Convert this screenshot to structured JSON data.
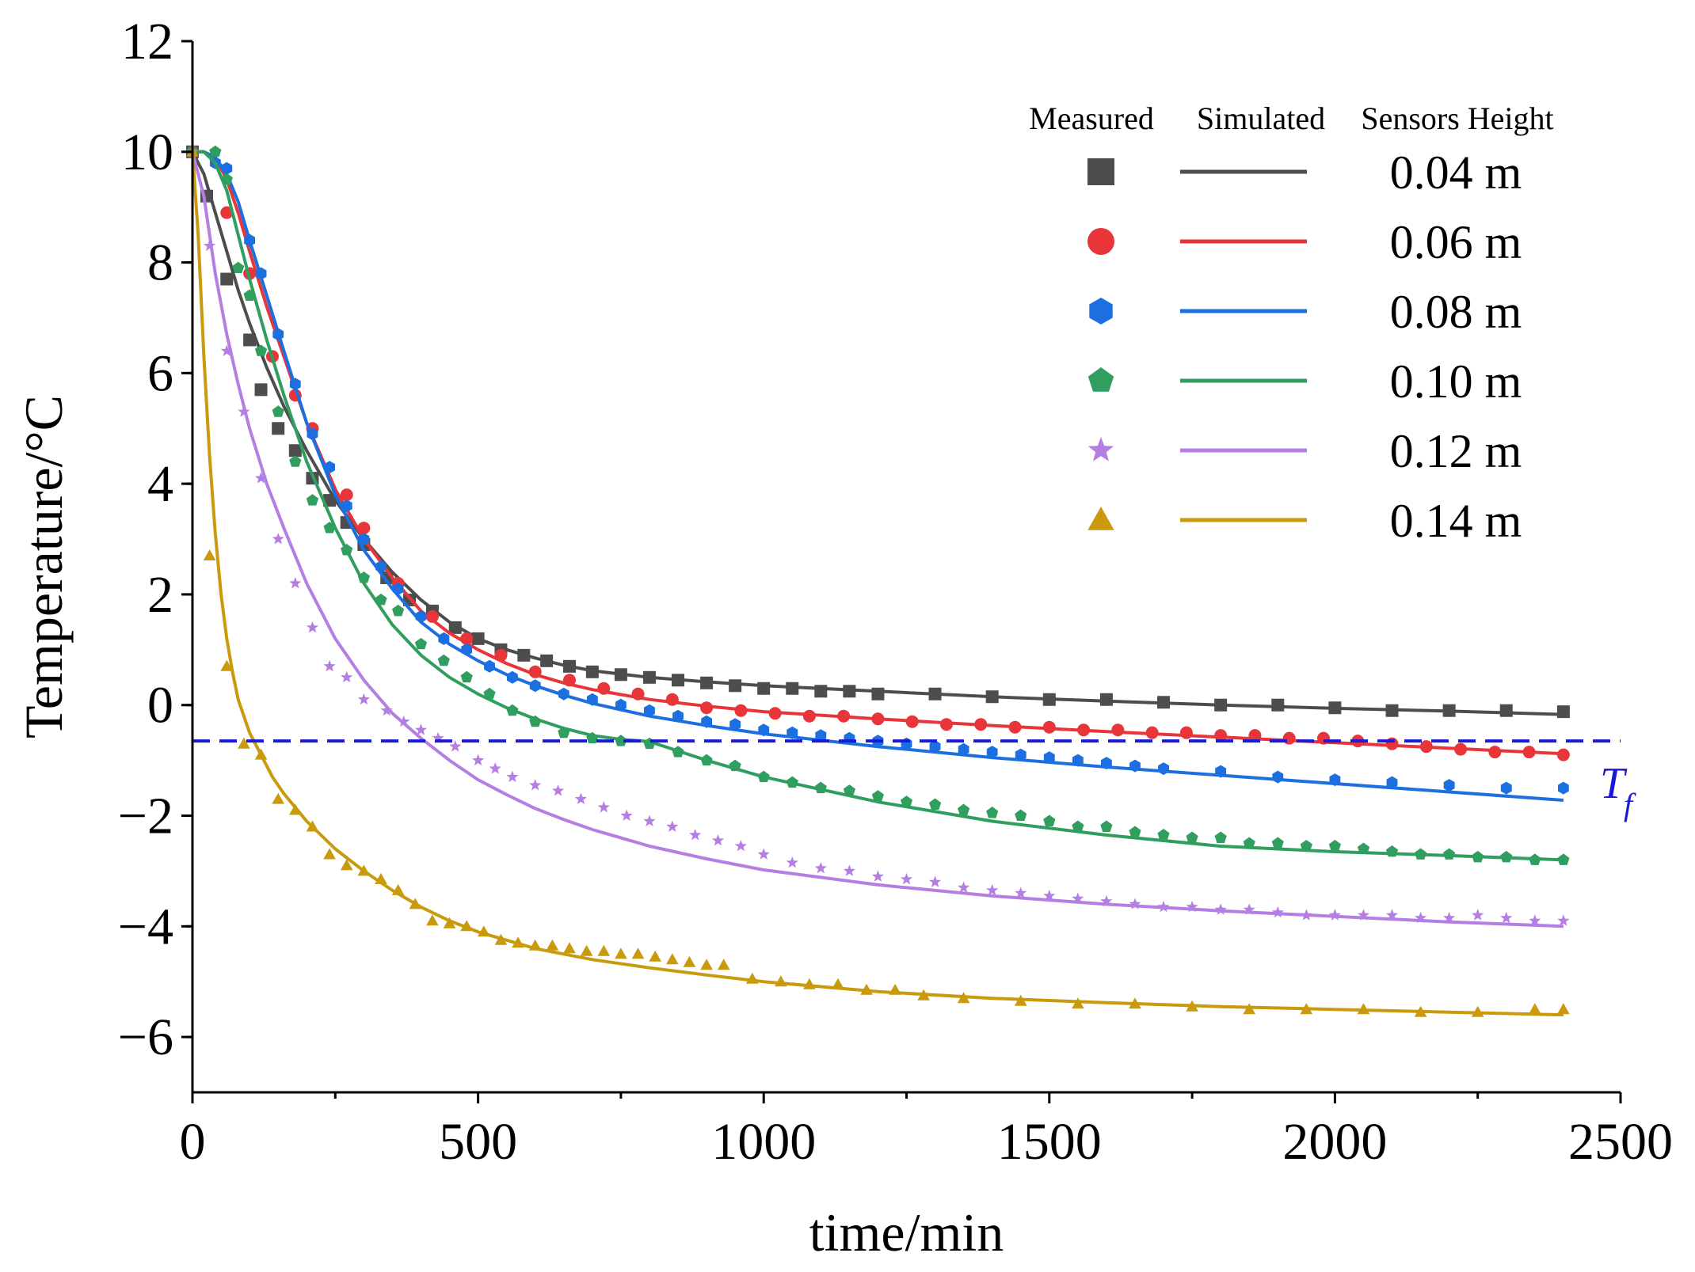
{
  "chart_data": {
    "type": "scatter",
    "title": "",
    "xlabel": "time/min",
    "ylabel": "Temperature/°C",
    "xlim": [
      0,
      2500
    ],
    "ylim": [
      -7,
      12
    ],
    "xticks": [
      "0",
      "500",
      "1000",
      "1500",
      "2000",
      "2500"
    ],
    "yticks": [
      "−6",
      "−4",
      "−2",
      "0",
      "2",
      "4",
      "6",
      "8",
      "10",
      "12"
    ],
    "xtick_values": [
      0,
      500,
      1000,
      1500,
      2000,
      2500
    ],
    "ytick_values": [
      -6,
      -4,
      -2,
      0,
      2,
      4,
      6,
      8,
      10,
      12
    ],
    "legend": {
      "position": "top-right",
      "headers": {
        "measured": "Measured",
        "simulated": "Simulated",
        "height": "Sensors Height"
      }
    },
    "reference_line": {
      "name": "T",
      "subscript": "f",
      "y": -0.65,
      "color": "#1a1ad6",
      "style": "dashed"
    },
    "series": [
      {
        "name": "0.04 m",
        "color": "#4d4d4d",
        "marker": "square",
        "simulated": {
          "x": [
            0,
            20,
            40,
            60,
            80,
            100,
            130,
            160,
            200,
            250,
            300,
            350,
            400,
            450,
            500,
            550,
            600,
            650,
            700,
            800,
            900,
            1000,
            1200,
            1400,
            1600,
            1800,
            2000,
            2200,
            2400
          ],
          "y": [
            10,
            9.6,
            8.9,
            8.2,
            7.5,
            6.9,
            6.1,
            5.4,
            4.6,
            3.7,
            3.0,
            2.4,
            1.9,
            1.5,
            1.2,
            1.0,
            0.85,
            0.72,
            0.62,
            0.5,
            0.42,
            0.35,
            0.25,
            0.15,
            0.07,
            0.0,
            -0.06,
            -0.11,
            -0.17
          ]
        },
        "measured": {
          "x": [
            0,
            25,
            60,
            100,
            120,
            150,
            180,
            210,
            240,
            270,
            300,
            340,
            380,
            420,
            460,
            500,
            540,
            580,
            620,
            660,
            700,
            750,
            800,
            850,
            900,
            950,
            1000,
            1050,
            1100,
            1150,
            1200,
            1300,
            1400,
            1500,
            1600,
            1700,
            1800,
            1900,
            2000,
            2100,
            2200,
            2300,
            2400
          ],
          "y": [
            10,
            9.2,
            7.7,
            6.6,
            5.7,
            5.0,
            4.6,
            4.1,
            3.7,
            3.3,
            2.9,
            2.3,
            1.9,
            1.7,
            1.4,
            1.2,
            1.0,
            0.9,
            0.8,
            0.7,
            0.6,
            0.55,
            0.5,
            0.45,
            0.4,
            0.35,
            0.3,
            0.3,
            0.25,
            0.25,
            0.2,
            0.2,
            0.15,
            0.1,
            0.1,
            0.05,
            0.0,
            0.0,
            -0.05,
            -0.1,
            -0.1,
            -0.1,
            -0.12
          ]
        }
      },
      {
        "name": "0.06 m",
        "color": "#e8353a",
        "marker": "circle",
        "simulated": {
          "x": [
            0,
            20,
            40,
            60,
            80,
            100,
            130,
            160,
            200,
            250,
            300,
            350,
            400,
            450,
            500,
            550,
            600,
            650,
            700,
            800,
            900,
            1000,
            1200,
            1400,
            1600,
            1800,
            2000,
            2200,
            2400
          ],
          "y": [
            10,
            10.0,
            9.9,
            9.5,
            8.9,
            8.2,
            7.2,
            6.3,
            5.1,
            3.9,
            3.0,
            2.3,
            1.7,
            1.3,
            1.0,
            0.75,
            0.55,
            0.4,
            0.28,
            0.1,
            -0.02,
            -0.12,
            -0.25,
            -0.37,
            -0.48,
            -0.58,
            -0.68,
            -0.78,
            -0.88
          ]
        },
        "measured": {
          "x": [
            0,
            60,
            100,
            140,
            180,
            210,
            270,
            300,
            360,
            420,
            480,
            540,
            600,
            660,
            720,
            780,
            840,
            900,
            960,
            1020,
            1080,
            1140,
            1200,
            1260,
            1320,
            1380,
            1440,
            1500,
            1560,
            1620,
            1680,
            1740,
            1800,
            1860,
            1920,
            1980,
            2040,
            2100,
            2160,
            2220,
            2280,
            2340,
            2400
          ],
          "y": [
            10,
            8.9,
            7.8,
            6.3,
            5.6,
            5.0,
            3.8,
            3.2,
            2.2,
            1.6,
            1.2,
            0.9,
            0.6,
            0.45,
            0.3,
            0.2,
            0.1,
            -0.05,
            -0.1,
            -0.15,
            -0.2,
            -0.2,
            -0.25,
            -0.3,
            -0.35,
            -0.35,
            -0.4,
            -0.4,
            -0.45,
            -0.45,
            -0.5,
            -0.5,
            -0.55,
            -0.55,
            -0.6,
            -0.6,
            -0.65,
            -0.7,
            -0.75,
            -0.8,
            -0.85,
            -0.85,
            -0.9
          ]
        }
      },
      {
        "name": "0.08 m",
        "color": "#1c6fe0",
        "marker": "hexagon",
        "simulated": {
          "x": [
            0,
            20,
            40,
            60,
            80,
            100,
            130,
            160,
            200,
            250,
            300,
            350,
            400,
            450,
            500,
            550,
            600,
            650,
            700,
            800,
            900,
            1000,
            1200,
            1400,
            1600,
            1800,
            2000,
            2200,
            2400
          ],
          "y": [
            10,
            10.0,
            9.9,
            9.6,
            9.1,
            8.4,
            7.4,
            6.4,
            5.1,
            3.8,
            2.8,
            2.1,
            1.5,
            1.1,
            0.8,
            0.55,
            0.35,
            0.18,
            0.03,
            -0.2,
            -0.37,
            -0.52,
            -0.75,
            -0.95,
            -1.12,
            -1.27,
            -1.42,
            -1.57,
            -1.72
          ]
        },
        "measured": {
          "x": [
            0,
            40,
            60,
            100,
            120,
            150,
            180,
            210,
            240,
            270,
            300,
            330,
            360,
            400,
            440,
            480,
            520,
            560,
            600,
            650,
            700,
            750,
            800,
            850,
            900,
            950,
            1000,
            1050,
            1100,
            1150,
            1200,
            1250,
            1300,
            1350,
            1400,
            1450,
            1500,
            1550,
            1600,
            1650,
            1700,
            1800,
            1900,
            2000,
            2100,
            2200,
            2300,
            2400
          ],
          "y": [
            10,
            9.8,
            9.7,
            8.4,
            7.8,
            6.7,
            5.8,
            4.9,
            4.3,
            3.6,
            3.0,
            2.5,
            2.1,
            1.6,
            1.2,
            1.0,
            0.7,
            0.5,
            0.35,
            0.2,
            0.1,
            0.0,
            -0.1,
            -0.2,
            -0.3,
            -0.35,
            -0.45,
            -0.5,
            -0.55,
            -0.6,
            -0.65,
            -0.7,
            -0.75,
            -0.8,
            -0.85,
            -0.9,
            -0.95,
            -1.0,
            -1.05,
            -1.1,
            -1.15,
            -1.2,
            -1.3,
            -1.35,
            -1.4,
            -1.45,
            -1.5,
            -1.5
          ]
        }
      },
      {
        "name": "0.10 m",
        "color": "#2f9e5e",
        "marker": "pentagon",
        "simulated": {
          "x": [
            0,
            20,
            40,
            60,
            80,
            100,
            130,
            160,
            200,
            250,
            300,
            350,
            400,
            450,
            500,
            550,
            600,
            650,
            700,
            750,
            800,
            900,
            1000,
            1200,
            1400,
            1600,
            1800,
            2000,
            2200,
            2400
          ],
          "y": [
            10,
            10.0,
            9.8,
            9.3,
            8.5,
            7.7,
            6.6,
            5.6,
            4.4,
            3.2,
            2.2,
            1.45,
            0.9,
            0.5,
            0.2,
            -0.05,
            -0.25,
            -0.42,
            -0.55,
            -0.62,
            -0.66,
            -1.0,
            -1.3,
            -1.75,
            -2.1,
            -2.35,
            -2.55,
            -2.65,
            -2.72,
            -2.8
          ]
        },
        "measured": {
          "x": [
            0,
            40,
            60,
            80,
            100,
            120,
            150,
            180,
            210,
            240,
            270,
            300,
            330,
            360,
            400,
            440,
            480,
            520,
            560,
            600,
            650,
            700,
            750,
            800,
            850,
            900,
            950,
            1000,
            1050,
            1100,
            1150,
            1200,
            1250,
            1300,
            1350,
            1400,
            1450,
            1500,
            1550,
            1600,
            1650,
            1700,
            1750,
            1800,
            1850,
            1900,
            1950,
            2000,
            2050,
            2100,
            2150,
            2200,
            2250,
            2300,
            2350,
            2400
          ],
          "y": [
            10,
            10.0,
            9.5,
            7.9,
            7.4,
            6.4,
            5.3,
            4.4,
            3.7,
            3.2,
            2.8,
            2.3,
            1.9,
            1.7,
            1.1,
            0.8,
            0.5,
            0.2,
            -0.1,
            -0.3,
            -0.5,
            -0.6,
            -0.65,
            -0.7,
            -0.85,
            -1.0,
            -1.1,
            -1.3,
            -1.4,
            -1.5,
            -1.55,
            -1.65,
            -1.75,
            -1.8,
            -1.9,
            -1.95,
            -2.0,
            -2.1,
            -2.2,
            -2.2,
            -2.3,
            -2.35,
            -2.4,
            -2.4,
            -2.5,
            -2.5,
            -2.55,
            -2.55,
            -2.6,
            -2.65,
            -2.7,
            -2.7,
            -2.75,
            -2.75,
            -2.8,
            -2.8
          ]
        }
      },
      {
        "name": "0.12 m",
        "color": "#b57ee3",
        "marker": "star",
        "simulated": {
          "x": [
            0,
            20,
            40,
            60,
            80,
            100,
            130,
            160,
            200,
            250,
            300,
            350,
            400,
            450,
            500,
            550,
            600,
            650,
            700,
            800,
            900,
            1000,
            1200,
            1400,
            1600,
            1800,
            2000,
            2200,
            2400
          ],
          "y": [
            10,
            9.2,
            7.8,
            6.7,
            5.8,
            5.0,
            4.0,
            3.2,
            2.2,
            1.2,
            0.45,
            -0.15,
            -0.6,
            -1.0,
            -1.35,
            -1.62,
            -1.87,
            -2.07,
            -2.25,
            -2.55,
            -2.78,
            -2.98,
            -3.25,
            -3.45,
            -3.6,
            -3.72,
            -3.82,
            -3.92,
            -4.0
          ]
        },
        "measured": {
          "x": [
            0,
            30,
            60,
            90,
            120,
            150,
            180,
            210,
            240,
            270,
            300,
            340,
            370,
            400,
            430,
            460,
            500,
            530,
            560,
            600,
            640,
            680,
            720,
            760,
            800,
            840,
            880,
            920,
            960,
            1000,
            1050,
            1100,
            1150,
            1200,
            1250,
            1300,
            1350,
            1400,
            1450,
            1500,
            1550,
            1600,
            1650,
            1700,
            1750,
            1800,
            1850,
            1900,
            1950,
            2000,
            2050,
            2100,
            2150,
            2200,
            2250,
            2300,
            2350,
            2400
          ],
          "y": [
            10,
            8.3,
            6.4,
            5.3,
            4.1,
            3.0,
            2.2,
            1.4,
            0.7,
            0.5,
            0.1,
            -0.1,
            -0.3,
            -0.45,
            -0.6,
            -0.75,
            -1.0,
            -1.15,
            -1.3,
            -1.45,
            -1.55,
            -1.7,
            -1.85,
            -2.0,
            -2.1,
            -2.2,
            -2.35,
            -2.45,
            -2.55,
            -2.7,
            -2.85,
            -2.95,
            -3.0,
            -3.1,
            -3.15,
            -3.2,
            -3.3,
            -3.35,
            -3.4,
            -3.45,
            -3.5,
            -3.55,
            -3.6,
            -3.65,
            -3.65,
            -3.7,
            -3.7,
            -3.75,
            -3.8,
            -3.8,
            -3.8,
            -3.8,
            -3.85,
            -3.85,
            -3.8,
            -3.85,
            -3.9,
            -3.9
          ]
        }
      },
      {
        "name": "0.14 m",
        "color": "#c99a0c",
        "marker": "triangle",
        "simulated": {
          "x": [
            0,
            10,
            20,
            30,
            40,
            50,
            60,
            70,
            80,
            100,
            120,
            140,
            160,
            200,
            250,
            300,
            350,
            400,
            450,
            500,
            600,
            700,
            800,
            900,
            1000,
            1200,
            1400,
            1600,
            1800,
            2000,
            2200,
            2400
          ],
          "y": [
            10,
            8.5,
            6.3,
            4.5,
            3.1,
            2.0,
            1.2,
            0.6,
            0.1,
            -0.5,
            -0.9,
            -1.3,
            -1.6,
            -2.1,
            -2.6,
            -3.0,
            -3.35,
            -3.65,
            -3.9,
            -4.1,
            -4.4,
            -4.6,
            -4.75,
            -4.88,
            -5.0,
            -5.18,
            -5.3,
            -5.38,
            -5.45,
            -5.5,
            -5.55,
            -5.6
          ]
        },
        "measured": {
          "x": [
            0,
            30,
            60,
            90,
            120,
            150,
            180,
            210,
            240,
            270,
            300,
            330,
            360,
            390,
            420,
            450,
            480,
            510,
            540,
            570,
            600,
            630,
            660,
            690,
            720,
            750,
            780,
            810,
            840,
            870,
            900,
            930,
            980,
            1030,
            1080,
            1130,
            1180,
            1230,
            1280,
            1350,
            1450,
            1550,
            1650,
            1750,
            1850,
            1950,
            2050,
            2150,
            2250,
            2350,
            2400
          ],
          "y": [
            10,
            2.7,
            0.7,
            -0.7,
            -0.9,
            -1.7,
            -1.9,
            -2.2,
            -2.7,
            -2.9,
            -3.0,
            -3.15,
            -3.35,
            -3.6,
            -3.9,
            -3.95,
            -4.0,
            -4.1,
            -4.25,
            -4.3,
            -4.35,
            -4.35,
            -4.4,
            -4.45,
            -4.45,
            -4.5,
            -4.5,
            -4.55,
            -4.6,
            -4.65,
            -4.7,
            -4.7,
            -4.95,
            -5.0,
            -5.05,
            -5.05,
            -5.15,
            -5.15,
            -5.25,
            -5.3,
            -5.35,
            -5.4,
            -5.4,
            -5.45,
            -5.5,
            -5.5,
            -5.5,
            -5.55,
            -5.55,
            -5.5,
            -5.5
          ]
        }
      }
    ]
  }
}
